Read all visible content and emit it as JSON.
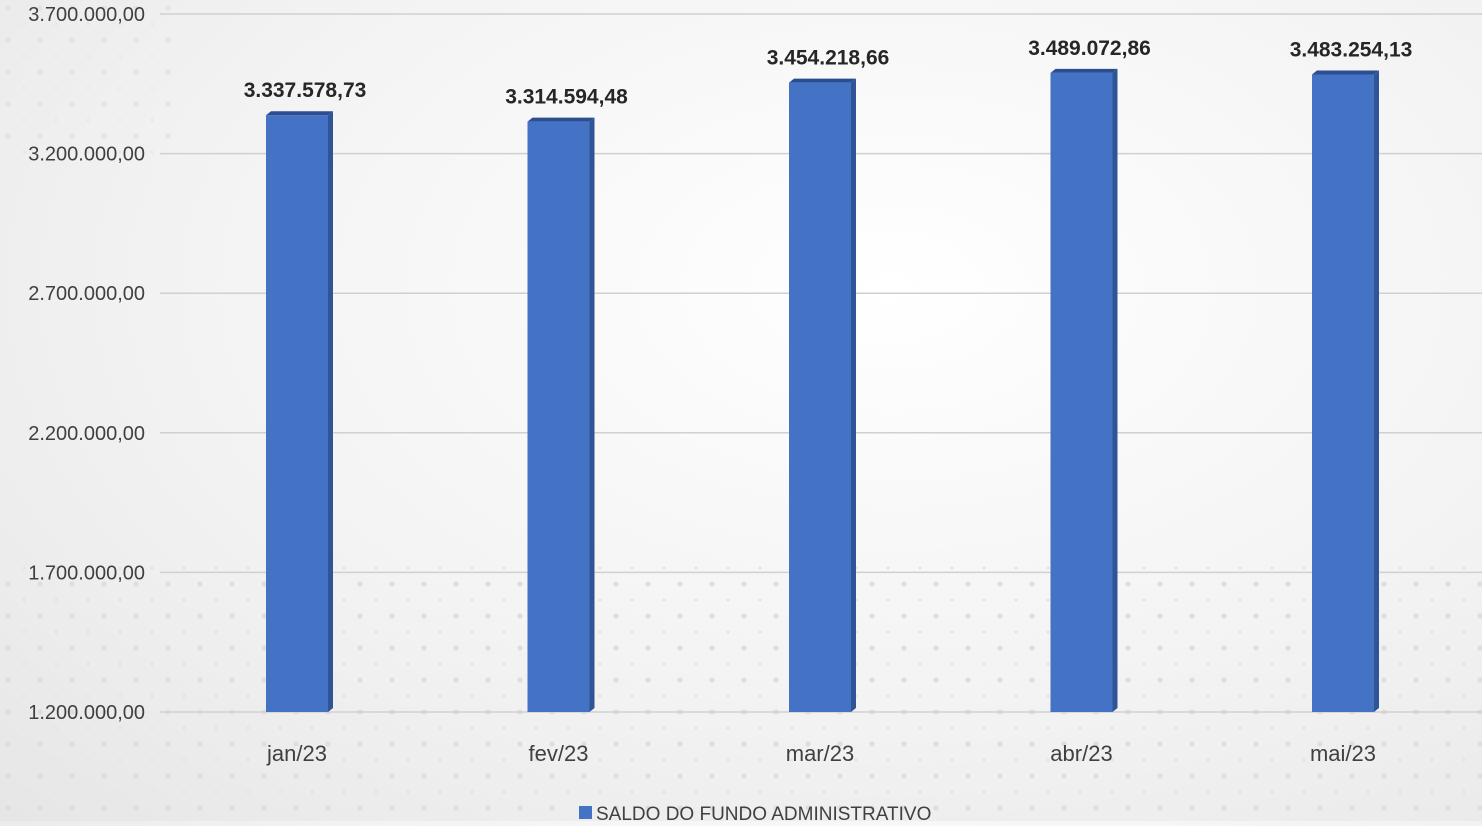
{
  "chart_data": {
    "type": "bar",
    "categories": [
      "jan/23",
      "fev/23",
      "mar/23",
      "abr/23",
      "mai/23"
    ],
    "series": [
      {
        "name": "SALDO DO FUNDO ADMINISTRATIVO",
        "values": [
          3337578.73,
          3314594.48,
          3454218.66,
          3489072.86,
          3483254.13
        ],
        "color": "#4472C4"
      }
    ],
    "data_labels": [
      "3.337.578,73",
      "3.314.594,48",
      "3.454.218,66",
      "3.489.072,86",
      "3.483.254,13"
    ],
    "y_ticks": [
      1200000,
      1700000,
      2200000,
      2700000,
      3200000,
      3700000
    ],
    "y_tick_labels": [
      "1.200.000,00",
      "1.700.000,00",
      "2.200.000,00",
      "2.700.000,00",
      "3.200.000,00",
      "3.700.000,00"
    ],
    "ylim": [
      1200000,
      3700000
    ],
    "grid": true,
    "legend": "bottom",
    "title": "",
    "xlabel": "",
    "ylabel": ""
  }
}
